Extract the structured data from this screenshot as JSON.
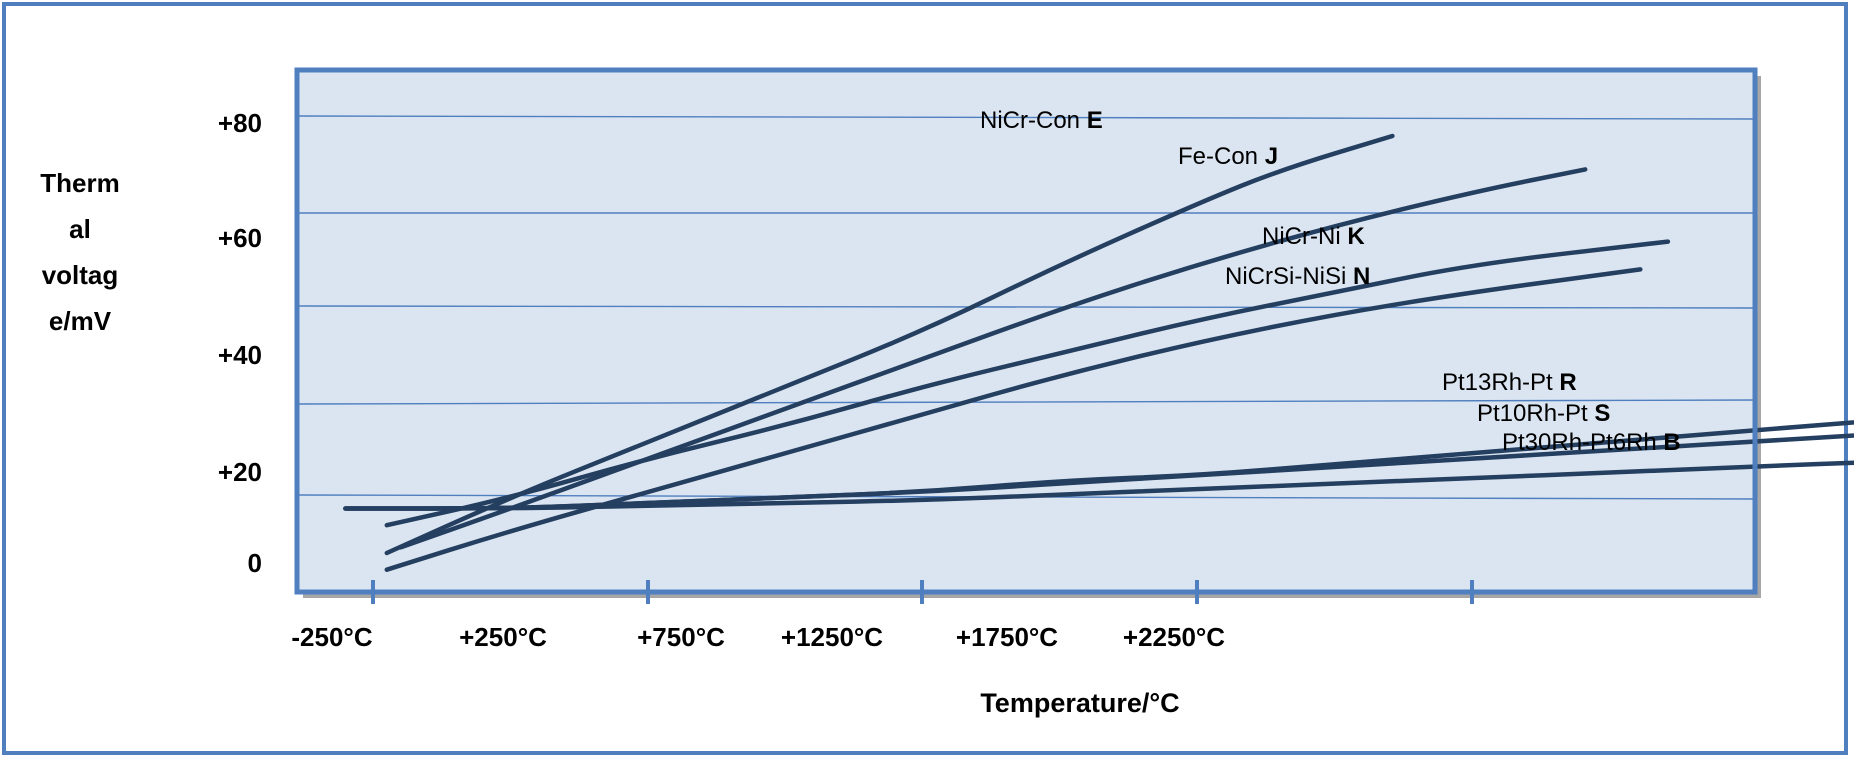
{
  "chart_data": {
    "type": "line",
    "xlabel": "Temperature/°C",
    "ylabel": "Thermal voltage/mV",
    "x_ticks": [
      "-250°C",
      "+250°C",
      "+750°C",
      "+1250°C",
      "+1750°C",
      "+2250°C"
    ],
    "y_ticks": [
      "0",
      "+20",
      "+40",
      "+60",
      "+80"
    ],
    "grid": true,
    "series": [
      {
        "name": "NiCr-Con",
        "code": "E",
        "color": "#243f60",
        "points": [
          [
            -225,
            0
          ],
          [
            0,
            10
          ],
          [
            250,
            20
          ],
          [
            500,
            30
          ],
          [
            750,
            40
          ],
          [
            1000,
            52
          ],
          [
            1250,
            63
          ],
          [
            1400,
            69
          ],
          [
            1600,
            75
          ]
        ]
      },
      {
        "name": "Fe-Con",
        "code": "J",
        "color": "#243f60",
        "points": [
          [
            -200,
            1
          ],
          [
            0,
            8
          ],
          [
            250,
            17
          ],
          [
            500,
            26
          ],
          [
            750,
            35
          ],
          [
            1000,
            44
          ],
          [
            1250,
            52
          ],
          [
            1500,
            59
          ],
          [
            1750,
            65
          ],
          [
            1950,
            69
          ]
        ]
      },
      {
        "name": "NiCr-Ni",
        "code": "K",
        "color": "#243f60",
        "points": [
          [
            -225,
            5
          ],
          [
            0,
            10
          ],
          [
            250,
            17
          ],
          [
            500,
            23
          ],
          [
            750,
            30
          ],
          [
            1000,
            36
          ],
          [
            1250,
            42
          ],
          [
            1500,
            47
          ],
          [
            1750,
            52
          ],
          [
            2100,
            56
          ]
        ]
      },
      {
        "name": "NiCrSi-NiSi",
        "code": "N",
        "color": "#243f60",
        "points": [
          [
            -225,
            -3
          ],
          [
            0,
            4
          ],
          [
            250,
            11
          ],
          [
            500,
            18
          ],
          [
            750,
            25
          ],
          [
            1000,
            32
          ],
          [
            1250,
            38
          ],
          [
            1500,
            43
          ],
          [
            1750,
            47
          ],
          [
            2050,
            51
          ]
        ]
      },
      {
        "name": "Pt13Rh-Pt",
        "code": "R",
        "color": "#243f60",
        "points": [
          [
            -300,
            8
          ],
          [
            0,
            8
          ],
          [
            250,
            9
          ],
          [
            500,
            10
          ],
          [
            750,
            11
          ],
          [
            1000,
            13
          ],
          [
            1250,
            14
          ],
          [
            1500,
            16
          ],
          [
            1750,
            18
          ],
          [
            2000,
            20
          ],
          [
            2250,
            22
          ],
          [
            2500,
            24
          ],
          [
            2700,
            25.5
          ]
        ]
      },
      {
        "name": "Pt10Rh-Pt",
        "code": "S",
        "color": "#243f60",
        "points": [
          [
            -300,
            8
          ],
          [
            0,
            8
          ],
          [
            250,
            9
          ],
          [
            500,
            10
          ],
          [
            750,
            11
          ],
          [
            1000,
            12.5
          ],
          [
            1250,
            14
          ],
          [
            1500,
            15.5
          ],
          [
            1750,
            17
          ],
          [
            2000,
            18.5
          ],
          [
            2250,
            20
          ],
          [
            2500,
            21.5
          ],
          [
            2750,
            23
          ]
        ]
      },
      {
        "name": "Pt30Rh-Pt6Rh",
        "code": "B",
        "color": "#243f60",
        "points": [
          [
            -300,
            8
          ],
          [
            0,
            8
          ],
          [
            250,
            8.5
          ],
          [
            500,
            9
          ],
          [
            750,
            9.5
          ],
          [
            1000,
            10.5
          ],
          [
            1250,
            11.5
          ],
          [
            1500,
            12.5
          ],
          [
            1750,
            13.5
          ],
          [
            2000,
            14.5
          ],
          [
            2250,
            15.5
          ],
          [
            2500,
            16.5
          ],
          [
            2800,
            17.5
          ]
        ]
      }
    ]
  }
}
